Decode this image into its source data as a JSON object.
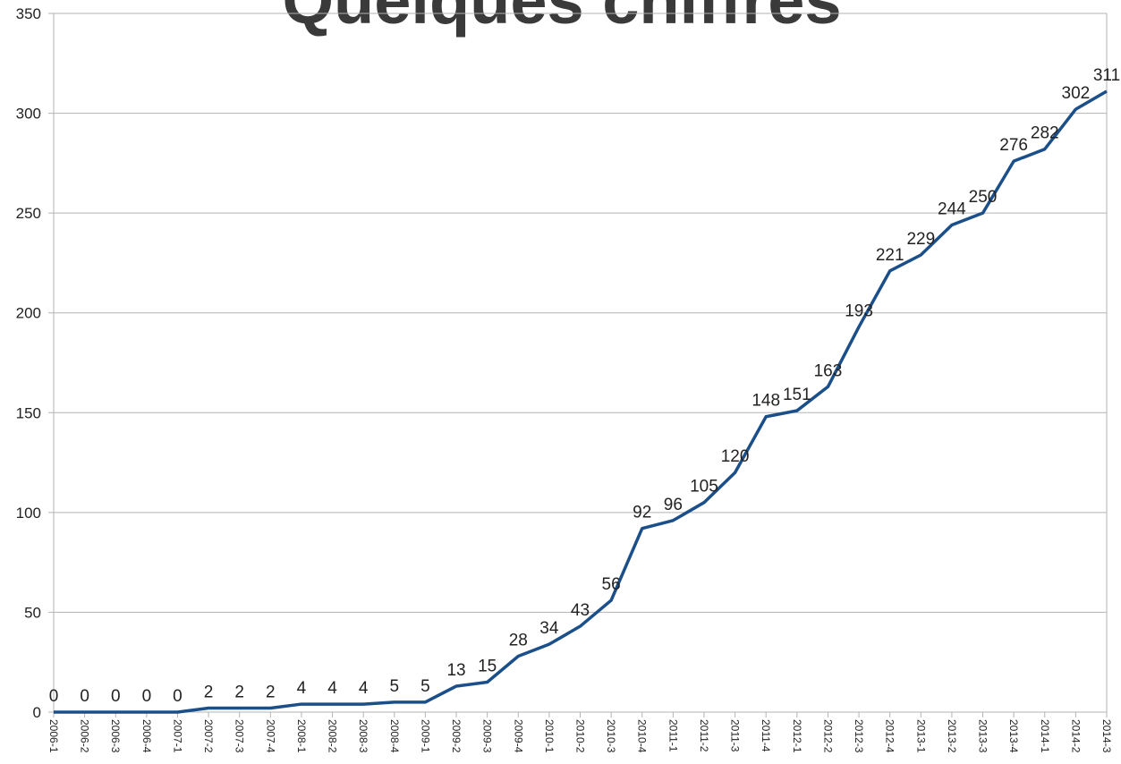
{
  "chart_data": {
    "type": "line",
    "title": "Quelques chiffres",
    "categories": [
      "2006-1",
      "2006-2",
      "2006-3",
      "2006-4",
      "2007-1",
      "2007-2",
      "2007-3",
      "2007-4",
      "2008-1",
      "2008-2",
      "2008-3",
      "2008-4",
      "2009-1",
      "2009-2",
      "2009-3",
      "2009-4",
      "2010-1",
      "2010-2",
      "2010-3",
      "2010-4",
      "2011-1",
      "2011-2",
      "2011-3",
      "2011-4",
      "2012-1",
      "2012-2",
      "2012-3",
      "2012-4",
      "2013-1",
      "2013-2",
      "2013-3",
      "2013-4",
      "2014-1",
      "2014-2",
      "2014-3"
    ],
    "values": [
      0,
      0,
      0,
      0,
      0,
      2,
      2,
      2,
      4,
      4,
      4,
      5,
      5,
      13,
      15,
      28,
      34,
      43,
      56,
      92,
      96,
      105,
      120,
      148,
      151,
      163,
      193,
      221,
      229,
      244,
      250,
      276,
      282,
      302,
      311
    ],
    "color": "#1b4f8a",
    "ylim": [
      0,
      350
    ],
    "yticks": [
      0,
      50,
      100,
      150,
      200,
      250,
      300,
      350
    ],
    "grid": true
  }
}
